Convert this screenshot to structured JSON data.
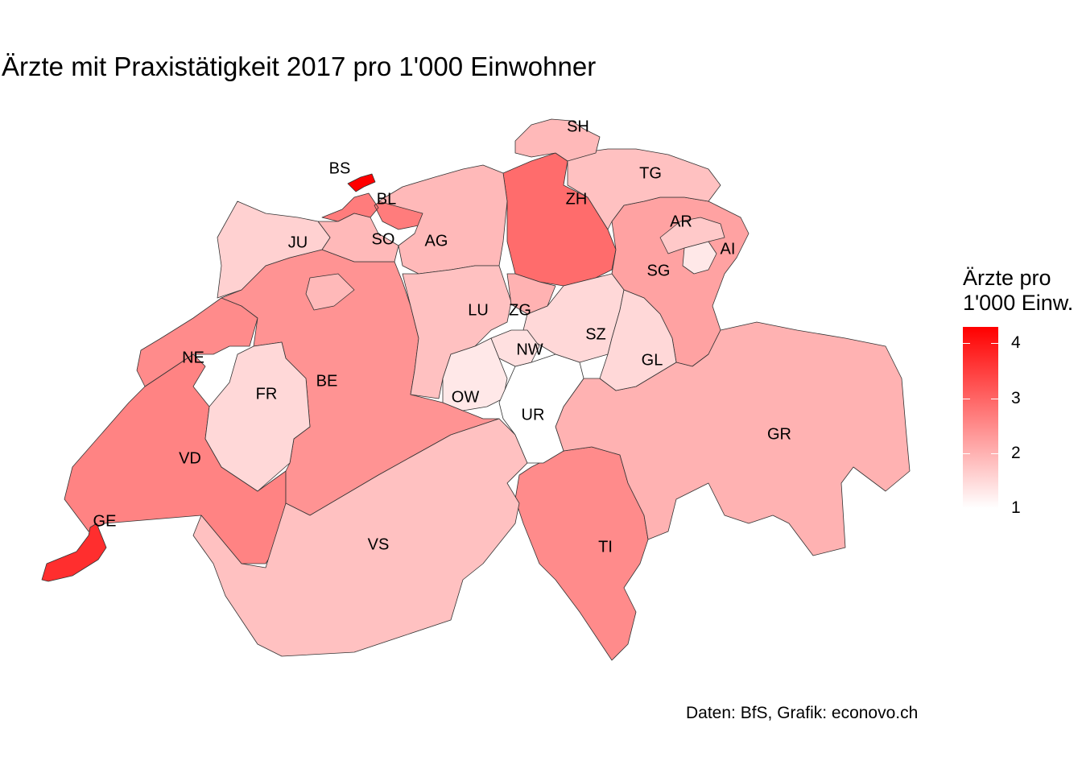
{
  "title": "Ärzte mit Praxistätigkeit 2017 pro 1'000 Einwohner",
  "caption": "Daten: BfS, Grafik: econovo.ch",
  "legend": {
    "title_line1": "Ärzte pro",
    "title_line2": "1'000 Einw.",
    "min": 1,
    "max": 4.3,
    "ticks": [
      "1",
      "2",
      "3",
      "4"
    ],
    "color_low": "#ffffff",
    "color_high": "#ff0000"
  },
  "chart_data": {
    "type": "map",
    "region": "Switzerland",
    "unit": "Ärzte pro 1'000 Einwohner",
    "cantons": [
      {
        "code": "BS",
        "value": 4.3
      },
      {
        "code": "GE",
        "value": 3.7
      },
      {
        "code": "ZH",
        "value": 2.9
      },
      {
        "code": "BL",
        "value": 2.7
      },
      {
        "code": "VD",
        "value": 2.6
      },
      {
        "code": "NE",
        "value": 2.5
      },
      {
        "code": "TI",
        "value": 2.5
      },
      {
        "code": "BE",
        "value": 2.4
      },
      {
        "code": "SG",
        "value": 2.2
      },
      {
        "code": "GR",
        "value": 2.0
      },
      {
        "code": "SO",
        "value": 1.9
      },
      {
        "code": "VS",
        "value": 1.8
      },
      {
        "code": "AG",
        "value": 1.9
      },
      {
        "code": "LU",
        "value": 1.8
      },
      {
        "code": "TG",
        "value": 1.8
      },
      {
        "code": "SH",
        "value": 1.9
      },
      {
        "code": "AR",
        "value": 1.7
      },
      {
        "code": "JU",
        "value": 1.6
      },
      {
        "code": "FR",
        "value": 1.5
      },
      {
        "code": "SZ",
        "value": 1.5
      },
      {
        "code": "GL",
        "value": 1.5
      },
      {
        "code": "ZG",
        "value": 2.0
      },
      {
        "code": "NW",
        "value": 1.4
      },
      {
        "code": "OW",
        "value": 1.3
      },
      {
        "code": "AI",
        "value": 1.3
      },
      {
        "code": "UR",
        "value": 1.0
      }
    ]
  }
}
